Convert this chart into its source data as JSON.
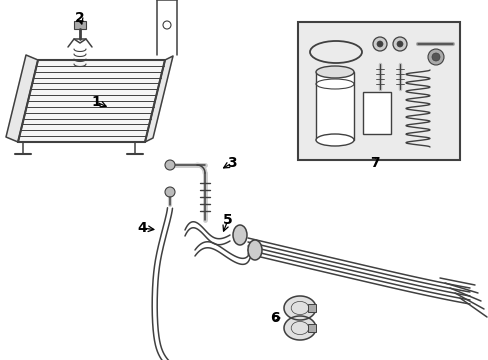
{
  "bg_color": "#ffffff",
  "lc": "#404040",
  "lc_thin": "#555555",
  "figsize": [
    4.89,
    3.6
  ],
  "dpi": 100,
  "label_fs": 10
}
